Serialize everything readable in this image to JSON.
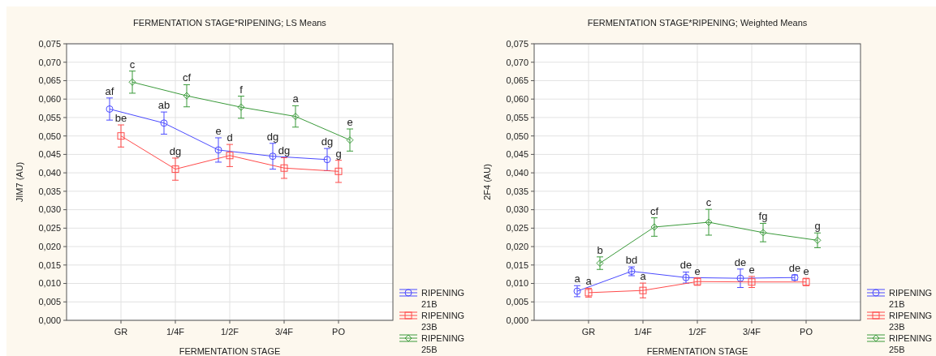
{
  "chart_data": [
    {
      "type": "line",
      "title": "FERMENTATION STAGE*RIPENING; LS Means",
      "xlabel": "FERMENTATION STAGE",
      "ylabel": "JIM7 (AU)",
      "categories": [
        "GR",
        "1/4F",
        "1/2F",
        "3/4F",
        "PO"
      ],
      "ylim": [
        0,
        0.075
      ],
      "yticks": [
        {
          "value": 0,
          "label": "0,000"
        },
        {
          "value": 0.005,
          "label": "0,005"
        },
        {
          "value": 0.01,
          "label": "0,010"
        },
        {
          "value": 0.015,
          "label": "0,015"
        },
        {
          "value": 0.02,
          "label": "0,020"
        },
        {
          "value": 0.025,
          "label": "0,025"
        },
        {
          "value": 0.03,
          "label": "0,030"
        },
        {
          "value": 0.035,
          "label": "0,035"
        },
        {
          "value": 0.04,
          "label": "0,040"
        },
        {
          "value": 0.045,
          "label": "0,045"
        },
        {
          "value": 0.05,
          "label": "0,050"
        },
        {
          "value": 0.055,
          "label": "0,055"
        },
        {
          "value": 0.06,
          "label": "0,060"
        },
        {
          "value": 0.065,
          "label": "0,065"
        },
        {
          "value": 0.07,
          "label": "0,070"
        },
        {
          "value": 0.075,
          "label": "0,075"
        }
      ],
      "grid": true,
      "legend": "bottom right",
      "series": [
        {
          "name": "RIPENING 21B",
          "color": "#4a4aff",
          "marker": "circle",
          "values": [
            0.0573,
            0.0535,
            0.0462,
            0.0445,
            0.0436
          ],
          "errors": [
            0.003,
            0.003,
            0.0033,
            0.0035,
            0.003
          ],
          "value_labels": [
            "af",
            "ab",
            "e",
            "dg",
            "dg"
          ]
        },
        {
          "name": "RIPENING 23B",
          "color": "#ff4a4a",
          "marker": "square",
          "values": [
            0.05,
            0.041,
            0.0447,
            0.0413,
            0.0404
          ],
          "errors": [
            0.003,
            0.003,
            0.003,
            0.0028,
            0.003
          ],
          "value_labels": [
            "be",
            "dg",
            "d",
            "dg",
            "g"
          ]
        },
        {
          "name": "RIPENING 25B",
          "color": "#3a9a3a",
          "marker": "diamond",
          "values": [
            0.0646,
            0.0609,
            0.0578,
            0.0553,
            0.0489
          ],
          "errors": [
            0.003,
            0.003,
            0.003,
            0.0029,
            0.003
          ],
          "value_labels": [
            "c",
            "cf",
            "f",
            "a",
            "e"
          ]
        }
      ]
    },
    {
      "type": "line",
      "title": "FERMENTATION STAGE*RIPENING; Weighted Means",
      "xlabel": "FERMENTATION STAGE",
      "ylabel": "2F4 (AU)",
      "categories": [
        "GR",
        "1/4F",
        "1/2F",
        "3/4F",
        "PO"
      ],
      "ylim": [
        0,
        0.075
      ],
      "yticks": [
        {
          "value": 0,
          "label": "0,000"
        },
        {
          "value": 0.005,
          "label": "0,005"
        },
        {
          "value": 0.01,
          "label": "0,010"
        },
        {
          "value": 0.015,
          "label": "0,015"
        },
        {
          "value": 0.02,
          "label": "0,020"
        },
        {
          "value": 0.025,
          "label": "0,025"
        },
        {
          "value": 0.03,
          "label": "0,030"
        },
        {
          "value": 0.035,
          "label": "0,035"
        },
        {
          "value": 0.04,
          "label": "0,040"
        },
        {
          "value": 0.045,
          "label": "0,045"
        },
        {
          "value": 0.05,
          "label": "0,050"
        },
        {
          "value": 0.055,
          "label": "0,055"
        },
        {
          "value": 0.06,
          "label": "0,060"
        },
        {
          "value": 0.065,
          "label": "0,065"
        },
        {
          "value": 0.07,
          "label": "0,070"
        },
        {
          "value": 0.075,
          "label": "0,075"
        }
      ],
      "grid": true,
      "legend": "bottom right",
      "series": [
        {
          "name": "RIPENING 21B",
          "color": "#4a4aff",
          "marker": "circle",
          "values": [
            0.0079,
            0.0133,
            0.0116,
            0.0114,
            0.0116
          ],
          "errors": [
            0.0015,
            0.0012,
            0.0015,
            0.0025,
            0.0007
          ],
          "value_labels": [
            "a",
            "bd",
            "de",
            "de",
            "de"
          ]
        },
        {
          "name": "RIPENING 23B",
          "color": "#ff4a4a",
          "marker": "square",
          "values": [
            0.0075,
            0.0081,
            0.0105,
            0.0104,
            0.0104
          ],
          "errors": [
            0.0012,
            0.002,
            0.001,
            0.0015,
            0.001
          ],
          "value_labels": [
            "a",
            "a",
            "e",
            "e",
            "e"
          ]
        },
        {
          "name": "RIPENING 25B",
          "color": "#3a9a3a",
          "marker": "diamond",
          "values": [
            0.0155,
            0.0253,
            0.0266,
            0.0238,
            0.0217
          ],
          "errors": [
            0.0017,
            0.0025,
            0.0035,
            0.0025,
            0.002
          ],
          "value_labels": [
            "b",
            "cf",
            "c",
            "fg",
            "g"
          ]
        }
      ]
    }
  ]
}
